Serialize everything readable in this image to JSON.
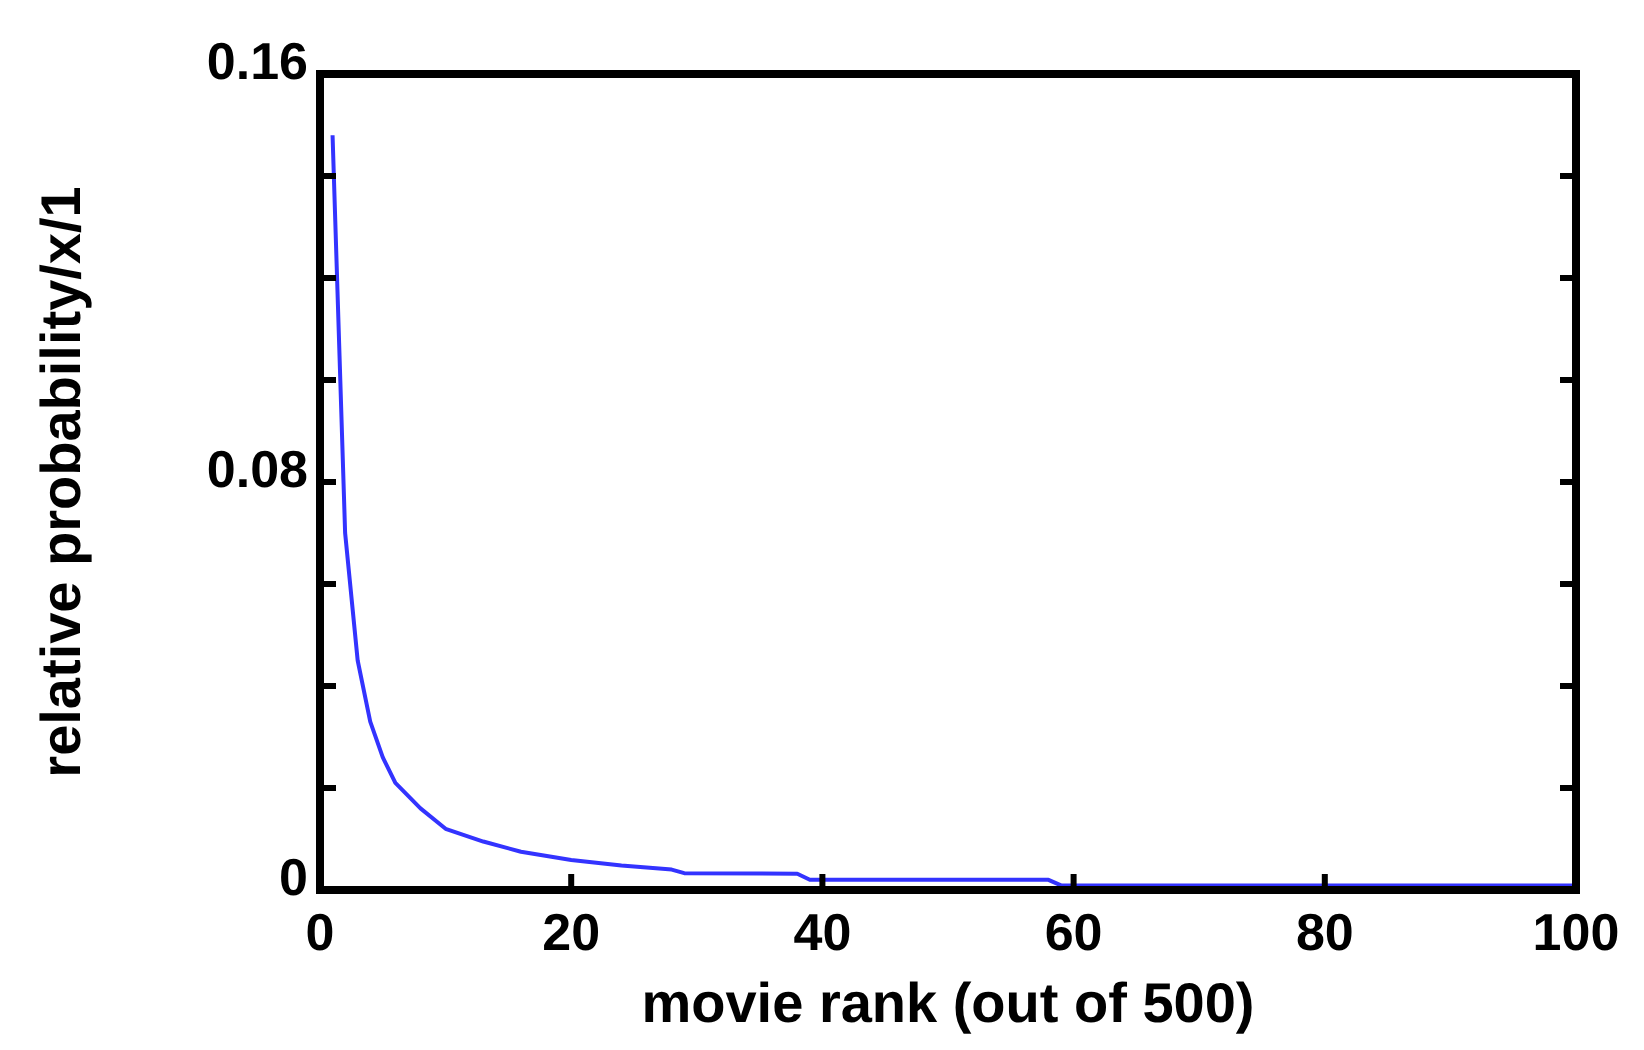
{
  "chart_data": {
    "type": "line",
    "xlabel": "movie rank (out of 500)",
    "ylabel": "relative probability/x/1",
    "xlim": [
      0,
      100
    ],
    "xticks": [
      0,
      20,
      40,
      60,
      80,
      100
    ],
    "ylim": [
      0,
      0.16
    ],
    "yticks": [
      0,
      {
        "value": 0.02,
        "label": null
      },
      {
        "value": 0.04,
        "label": null
      },
      {
        "value": 0.06,
        "label": null
      },
      {
        "value": 0.08,
        "label": "0.08"
      },
      {
        "value": 0.1,
        "label": null
      },
      {
        "value": 0.12,
        "label": null
      },
      {
        "value": 0.14,
        "label": null
      },
      {
        "value": 0.16,
        "label": "0.16"
      }
    ],
    "grid": false,
    "marker": "none",
    "line_style": "solid",
    "series": [
      {
        "color": "#3333ff",
        "x": [
          1,
          2,
          3,
          4,
          5,
          6,
          8,
          10,
          13,
          16,
          20,
          24,
          28,
          29,
          38,
          39,
          58,
          59,
          100
        ],
        "values": [
          0.148,
          0.07,
          0.045,
          0.033,
          0.026,
          0.021,
          0.016,
          0.012,
          0.0095,
          0.0075,
          0.0059,
          0.0048,
          0.004,
          0.0033,
          0.0032,
          0.002,
          0.002,
          0.0009,
          0.0009
        ]
      }
    ]
  }
}
